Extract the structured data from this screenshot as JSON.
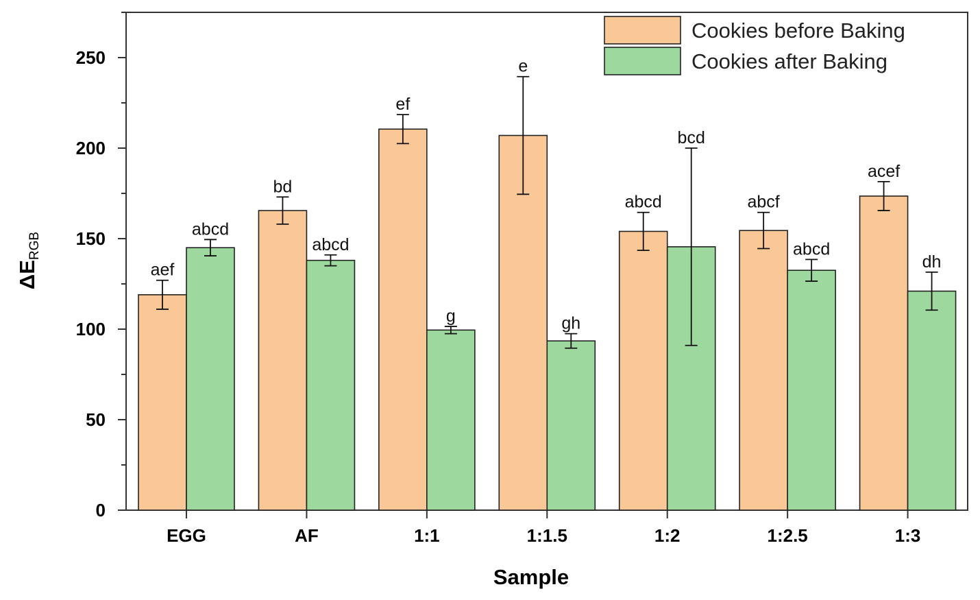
{
  "chart_data": {
    "type": "bar",
    "title": "",
    "xlabel": "Sample",
    "ylabel": "ΔE",
    "ylabel_subscript": "RGB",
    "ylim": [
      0,
      275
    ],
    "yticks": [
      0,
      50,
      100,
      150,
      200,
      250
    ],
    "grid": false,
    "legend_position": "top-right",
    "categories": [
      "EGG",
      "AF",
      "1:1",
      "1:1.5",
      "1:2",
      "1:2.5",
      "1:3"
    ],
    "series": [
      {
        "name": "Cookies before Baking",
        "color": "#FAC896",
        "values": [
          119,
          165.5,
          210.5,
          207,
          154,
          154.5,
          173.5
        ],
        "errors": [
          8,
          7.5,
          8,
          32.5,
          10.5,
          10,
          8
        ],
        "labels": [
          "aef",
          "bd",
          "ef",
          "e",
          "abcd",
          "abcf",
          "acef"
        ]
      },
      {
        "name": "Cookies after Baking",
        "color": "#9DD99F",
        "values": [
          145,
          138,
          99.5,
          93.5,
          145.5,
          132.5,
          121
        ],
        "errors": [
          4.5,
          3,
          2,
          4,
          54.5,
          6,
          10.5
        ],
        "labels": [
          "abcd",
          "abcd",
          "g",
          "gh",
          "bcd",
          "abcd",
          "dh"
        ]
      }
    ]
  }
}
